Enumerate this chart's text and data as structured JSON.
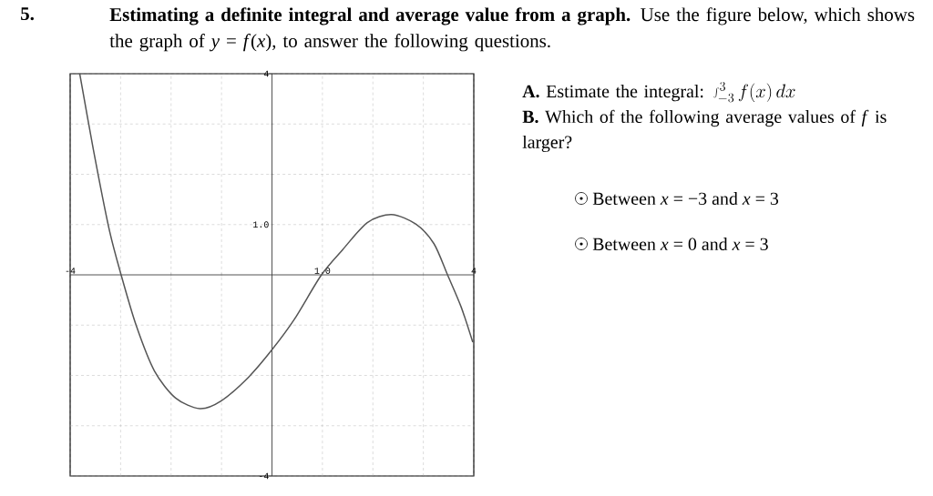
{
  "chart_data": {
    "type": "line",
    "title": "**Estimating a definite integral and average value from a graph.** Use the figure below, which shows the graph of *y* = *f*(*x*), to answer the following questions.",
    "annotations": [
      "**5.**",
      "**A.** Estimate the integral:",
      "\\int_{-3}^{3} f(x)\\,dx",
      "**B.** Which of the following average values of *f* is larger?",
      "Between *x* = −3 and *x* = 3",
      "Between *x* = 0 and *x* = 3"
    ],
    "x": [
      -3.81,
      -3.54,
      -3.23,
      -2.99,
      -2.69,
      -2.33,
      -1.91,
      -1.43,
      -1.01,
      -0.46,
      0,
      0.44,
      0.98,
      1.4,
      1.89,
      2.37,
      2.85,
      3.21,
      3.48,
      3.75,
      3.98
    ],
    "values": [
      4.0,
      2.49,
      0.92,
      0,
      -1.01,
      -1.91,
      -2.45,
      -2.66,
      -2.51,
      -2.03,
      -1.49,
      -0.89,
      0,
      0.5,
      1.04,
      1.2,
      1.01,
      0.62,
      0,
      -0.64,
      -1.34
    ],
    "color": "#555555",
    "xlim": [
      -4,
      4
    ],
    "ylim": [
      -4,
      4
    ],
    "xticks": [
      {
        "value": -4,
        "label": "-4"
      },
      {
        "value": -3,
        "label": null
      },
      {
        "value": -2,
        "label": null
      },
      {
        "value": -1,
        "label": null
      },
      {
        "value": 0,
        "label": null
      },
      {
        "value": 1,
        "label": "1.0"
      },
      {
        "value": 2,
        "label": null
      },
      {
        "value": 3,
        "label": null
      },
      {
        "value": 4,
        "label": "4"
      }
    ],
    "yticks": [
      {
        "value": -4,
        "label": "-4"
      },
      {
        "value": -3,
        "label": null
      },
      {
        "value": -2,
        "label": null
      },
      {
        "value": -1,
        "label": null
      },
      {
        "value": 0,
        "label": null
      },
      {
        "value": 1,
        "label": "1.0"
      },
      {
        "value": 2,
        "label": null
      },
      {
        "value": 3,
        "label": null
      },
      {
        "value": 4,
        "label": "4"
      }
    ],
    "grid": true,
    "marker": "none",
    "line_style": "solid"
  }
}
